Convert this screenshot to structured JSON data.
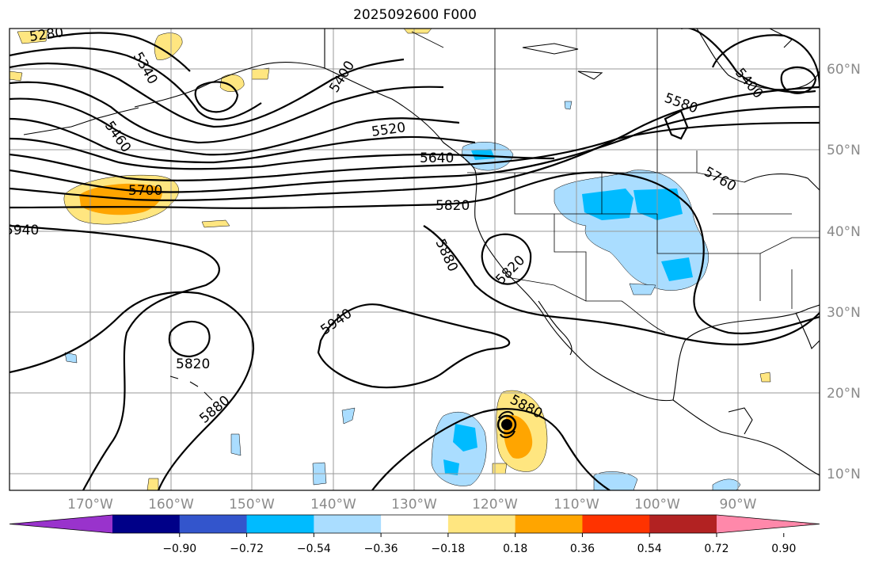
{
  "title": "2025092600 F000",
  "latitude_labels": [
    "60°N",
    "50°N",
    "40°N",
    "30°N",
    "20°N",
    "10°N"
  ],
  "longitude_labels": [
    "170°W",
    "160°W",
    "150°W",
    "140°W",
    "130°W",
    "120°W",
    "110°W",
    "100°W",
    "90°W"
  ],
  "contours": [
    {
      "label": "5280"
    },
    {
      "label": "5340"
    },
    {
      "label": "5400"
    },
    {
      "label": "5400"
    },
    {
      "label": "5460"
    },
    {
      "label": "5520"
    },
    {
      "label": "5580"
    },
    {
      "label": "5640"
    },
    {
      "label": "5700"
    },
    {
      "label": "5760"
    },
    {
      "label": "5820"
    },
    {
      "label": "5820"
    },
    {
      "label": "5820"
    },
    {
      "label": "5880"
    },
    {
      "label": "5880"
    },
    {
      "label": "5880"
    },
    {
      "label": "5940"
    },
    {
      "label": "5940"
    }
  ],
  "colorbar": {
    "ticks": [
      "−0.90",
      "−0.72",
      "−0.54",
      "−0.36",
      "−0.18",
      "0.18",
      "0.36",
      "0.54",
      "0.72",
      "0.90"
    ],
    "colors": [
      "#9933cc",
      "#000088",
      "#3355cc",
      "#00bbff",
      "#aaddff",
      "#ffffff",
      "#ffe680",
      "#ffa500",
      "#ff3300",
      "#b22222",
      "#ff88aa"
    ]
  },
  "fill_colors": {
    "light_blue": "#aaddff",
    "blue": "#00bbff",
    "light_yellow": "#ffe680",
    "orange": "#ffa500"
  },
  "storm_marker": "hurricane-icon"
}
